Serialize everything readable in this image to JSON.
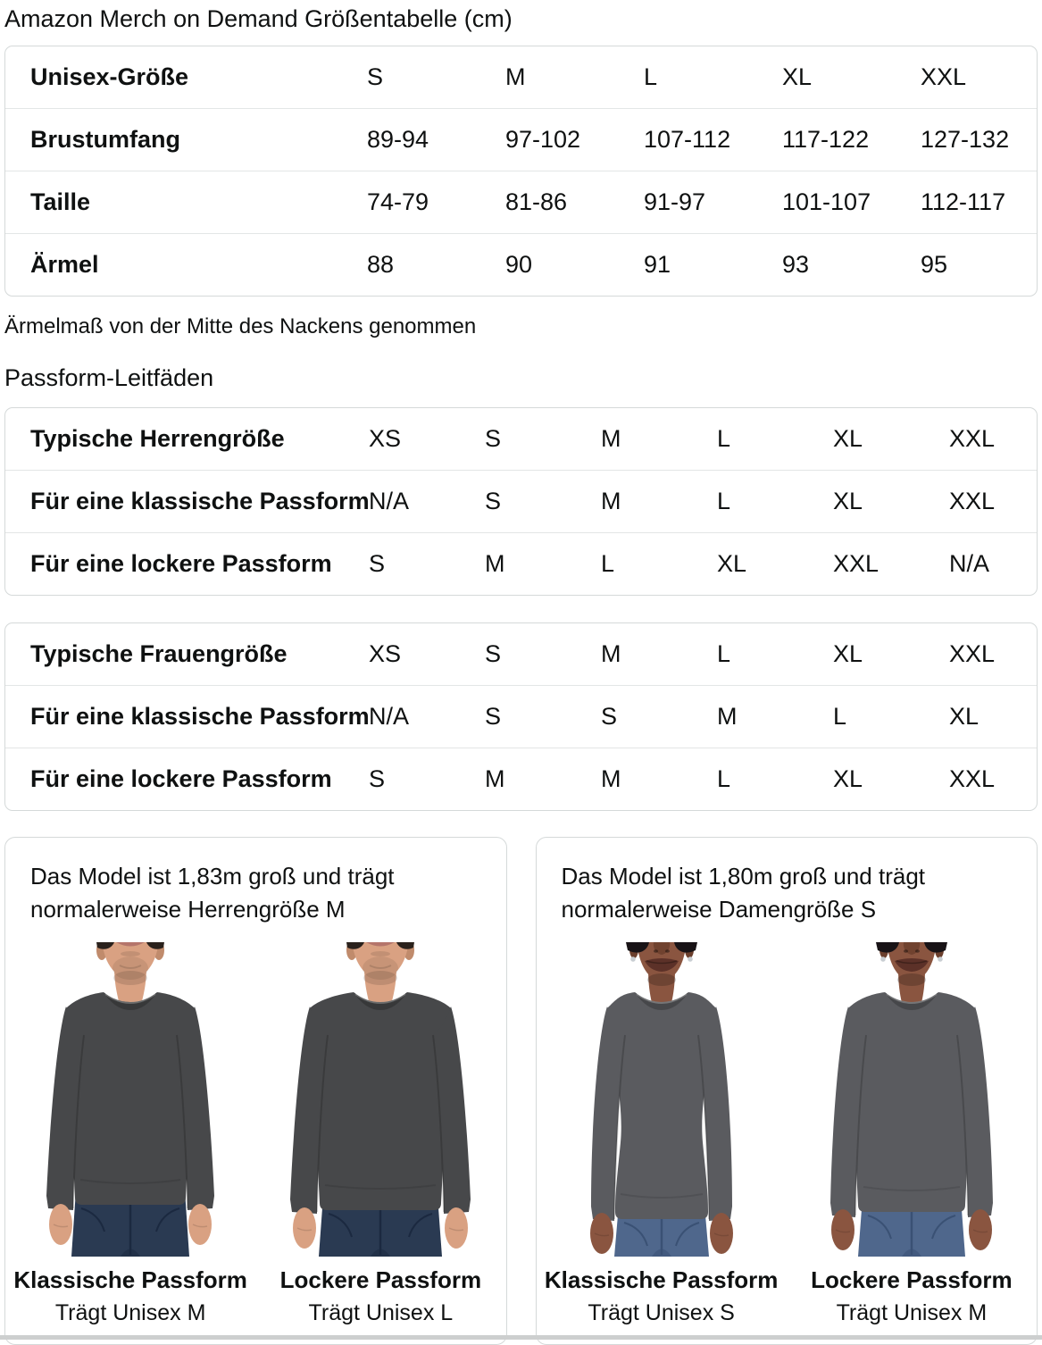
{
  "title": "Amazon Merch on Demand Größentabelle (cm)",
  "size_table": {
    "rows": [
      {
        "label": "Unisex-Größe",
        "values": [
          "S",
          "M",
          "L",
          "XL",
          "XXL"
        ]
      },
      {
        "label": "Brustumfang",
        "values": [
          "89-94",
          "97-102",
          "107-112",
          "117-122",
          "127-132"
        ]
      },
      {
        "label": "Taille",
        "values": [
          "74-79",
          "81-86",
          "91-97",
          "101-107",
          "112-117"
        ]
      },
      {
        "label": "Ärmel",
        "values": [
          "88",
          "90",
          "91",
          "93",
          "95"
        ]
      }
    ]
  },
  "note": "Ärmelmaß von der Mitte des Nackens genommen",
  "fit_heading": "Passform-Leitfäden",
  "mens_fit_table": {
    "rows": [
      {
        "label": "Typische Herrengröße",
        "values": [
          "XS",
          "S",
          "M",
          "L",
          "XL",
          "XXL"
        ]
      },
      {
        "label": "Für eine klassische Passform",
        "values": [
          "N/A",
          "S",
          "M",
          "L",
          "XL",
          "XXL"
        ]
      },
      {
        "label": "Für eine lockere Passform",
        "values": [
          "S",
          "M",
          "L",
          "XL",
          "XXL",
          "N/A"
        ]
      }
    ]
  },
  "womens_fit_table": {
    "rows": [
      {
        "label": "Typische Frauengröße",
        "values": [
          "XS",
          "S",
          "M",
          "L",
          "XL",
          "XXL"
        ]
      },
      {
        "label": "Für eine klassische Passform",
        "values": [
          "N/A",
          "S",
          "S",
          "M",
          "L",
          "XL"
        ]
      },
      {
        "label": "Für eine lockere Passform",
        "values": [
          "S",
          "M",
          "M",
          "L",
          "XL",
          "XXL"
        ]
      }
    ]
  },
  "model_cards": [
    {
      "caption": "Das Model ist 1,83m groß und trägt normalerweise Herrengröße M",
      "figures": [
        {
          "model": "male",
          "fit": "classic",
          "fit_label": "Klassische Passform",
          "size_label": "Trägt Unisex M"
        },
        {
          "model": "male",
          "fit": "loose",
          "fit_label": "Lockere Passform",
          "size_label": "Trägt Unisex L"
        }
      ]
    },
    {
      "caption": "Das Model ist 1,80m groß und trägt normalerweise Damengröße S",
      "figures": [
        {
          "model": "female",
          "fit": "classic",
          "fit_label": "Klassische Passform",
          "size_label": "Trägt Unisex S"
        },
        {
          "model": "female",
          "fit": "loose",
          "fit_label": "Lockere Passform",
          "size_label": "Trägt Unisex M"
        }
      ]
    }
  ],
  "colors": {
    "text": "#0f1111",
    "table_border": "#d5d9d9",
    "row_divider": "#e3e6e6",
    "man_shirt": "#47484a",
    "woman_shirt": "#5a5b5f",
    "man_jeans": "#2a3a52",
    "man_jeans_dark": "#1b2940",
    "woman_jeans": "#4f678c",
    "woman_jeans_dark": "#3a5174",
    "man_skin": "#d9a182",
    "man_skin_shadow": "#c08b6c",
    "woman_skin": "#8a5540",
    "woman_skin_shadow": "#6b3f2d",
    "man_lip": "#b5756b",
    "woman_lip": "#5c3128",
    "man_hair": "#2a211c",
    "woman_hair": "#181316",
    "earring": "#c9ced3",
    "bottom_strip": "#cdcfcf"
  }
}
